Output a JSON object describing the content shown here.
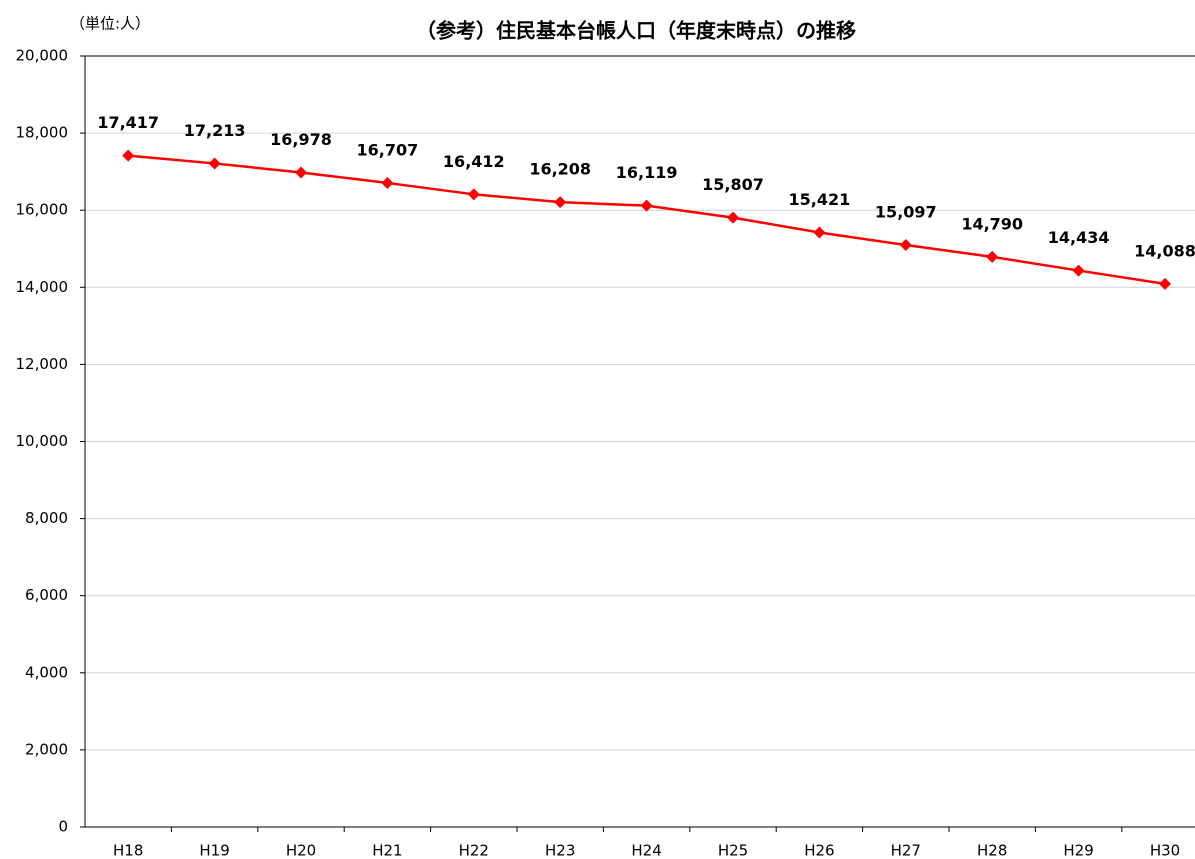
{
  "chart_data": {
    "type": "line",
    "title": "（参考）住民基本台帳人口（年度末時点）の推移",
    "unit_label": "（単位:人）",
    "categories": [
      "H18",
      "H19",
      "H20",
      "H21",
      "H22",
      "H23",
      "H24",
      "H25",
      "H26",
      "H27",
      "H28",
      "H29",
      "H30"
    ],
    "series": [
      {
        "name": "住民基本台帳人口",
        "color": "#ff0000",
        "values": [
          17417,
          17213,
          16978,
          16707,
          16412,
          16208,
          16119,
          15807,
          15421,
          15097,
          14790,
          14434,
          14088
        ],
        "value_labels": [
          "17,417",
          "17,213",
          "16,978",
          "16,707",
          "16,412",
          "16,208",
          "16,119",
          "15,807",
          "15,421",
          "15,097",
          "14,790",
          "14,434",
          "14,088"
        ]
      }
    ],
    "ylim": [
      0,
      20000
    ],
    "yticks": [
      0,
      {
        "value": 2000,
        "label": "2,000"
      },
      {
        "value": 4000,
        "label": "4,000"
      },
      {
        "value": 6000,
        "label": "6,000"
      },
      {
        "value": 8000,
        "label": "8,000"
      },
      {
        "value": 10000,
        "label": "10,000"
      },
      {
        "value": 12000,
        "label": "12,000"
      },
      {
        "value": 14000,
        "label": "14,000"
      },
      {
        "value": 16000,
        "label": "16,000"
      },
      {
        "value": 18000,
        "label": "18,000"
      },
      {
        "value": 20000,
        "label": "20,000"
      }
    ],
    "grid": true
  }
}
